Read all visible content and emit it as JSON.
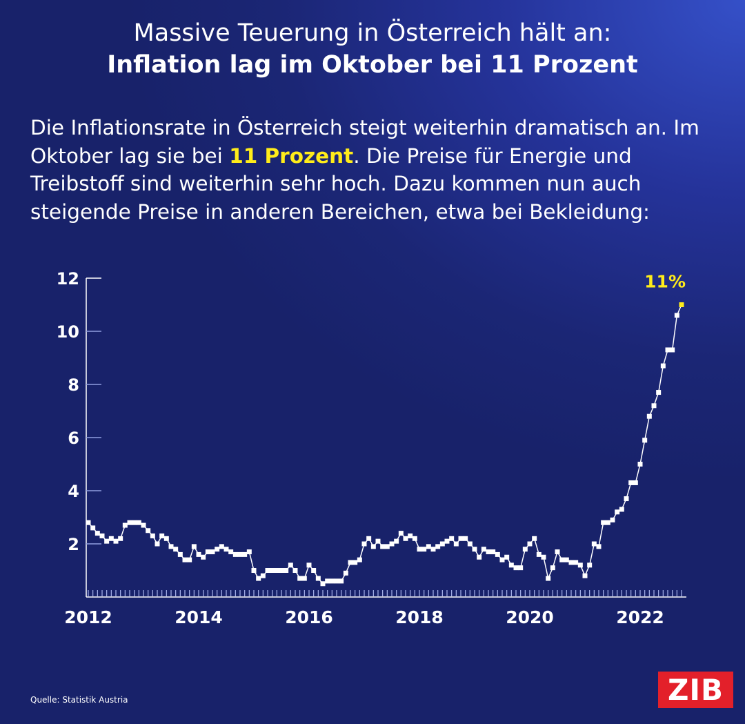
{
  "header": {
    "line1": "Massive Teuerung in Österreich hält an:",
    "line2": "Inflation lag im Oktober bei 11 Prozent"
  },
  "intro": {
    "before": "Die Inflationsrate in Österreich steigt weiterhin dramatisch an. Im Oktober lag sie bei ",
    "highlight": "11 Prozent",
    "after": ". Die Preise für Energie und Treibstoff sind weiterhin sehr hoch. Dazu kommen nun auch steigende Preise in anderen Bereichen, etwa bei Bekleidung:"
  },
  "source": "Quelle: Statistik Austria",
  "logo": "ZIB",
  "colors": {
    "background": "#1b2675",
    "line": "#ffffff",
    "highlight": "#ffec1a",
    "logo": "#e3202a"
  },
  "chart_data": {
    "type": "line",
    "title": "",
    "xlabel": "",
    "ylabel": "",
    "x_start": "2012-01",
    "x_end": "2022-10",
    "frequency": "monthly",
    "xticks": [
      "2012",
      "2014",
      "2016",
      "2018",
      "2020",
      "2022"
    ],
    "yticks": [
      "2",
      "4",
      "6",
      "8",
      "10",
      "12"
    ],
    "ylim": [
      0,
      12
    ],
    "grid": false,
    "annotation": "11%",
    "values": [
      2.8,
      2.6,
      2.4,
      2.3,
      2.1,
      2.2,
      2.1,
      2.2,
      2.7,
      2.8,
      2.8,
      2.8,
      2.7,
      2.5,
      2.3,
      2.0,
      2.3,
      2.2,
      1.9,
      1.8,
      1.6,
      1.4,
      1.4,
      1.9,
      1.6,
      1.5,
      1.7,
      1.7,
      1.8,
      1.9,
      1.8,
      1.7,
      1.6,
      1.6,
      1.6,
      1.7,
      1.0,
      0.7,
      0.8,
      1.0,
      1.0,
      1.0,
      1.0,
      1.0,
      1.2,
      1.0,
      0.7,
      0.7,
      1.2,
      1.0,
      0.7,
      0.5,
      0.6,
      0.6,
      0.6,
      0.6,
      0.9,
      1.3,
      1.3,
      1.4,
      2.0,
      2.2,
      1.9,
      2.1,
      1.9,
      1.9,
      2.0,
      2.1,
      2.4,
      2.2,
      2.3,
      2.2,
      1.8,
      1.8,
      1.9,
      1.8,
      1.9,
      2.0,
      2.1,
      2.2,
      2.0,
      2.2,
      2.2,
      2.0,
      1.8,
      1.5,
      1.8,
      1.7,
      1.7,
      1.6,
      1.4,
      1.5,
      1.2,
      1.1,
      1.1,
      1.8,
      2.0,
      2.2,
      1.6,
      1.5,
      0.7,
      1.1,
      1.7,
      1.4,
      1.4,
      1.3,
      1.3,
      1.2,
      0.8,
      1.2,
      2.0,
      1.9,
      2.8,
      2.8,
      2.9,
      3.2,
      3.3,
      3.7,
      4.3,
      4.3,
      5.0,
      5.9,
      6.8,
      7.2,
      7.7,
      8.7,
      9.3,
      9.3,
      10.6,
      11.0
    ]
  }
}
